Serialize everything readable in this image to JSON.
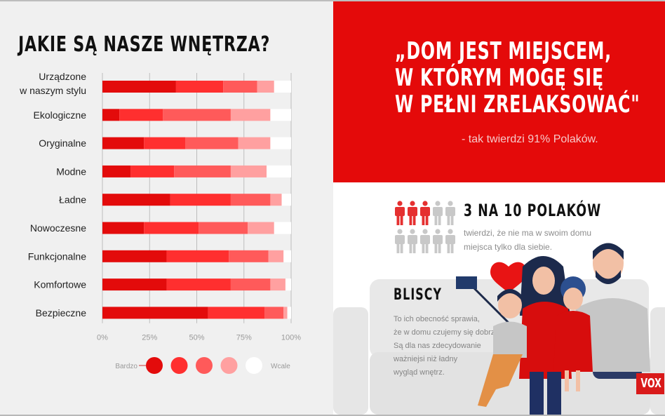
{
  "left": {
    "title": "JAKIE SĄ NASZE WNĘTRZA?"
  },
  "chart_data": {
    "type": "bar",
    "orientation": "horizontal",
    "stacked": true,
    "title": "JAKIE SĄ NASZE WNĘTRZA?",
    "xlabel": "",
    "ylabel": "",
    "xlim": [
      0,
      100
    ],
    "x_ticks": [
      "0%",
      "25%",
      "50%",
      "75%",
      "100%"
    ],
    "grid": true,
    "categories": [
      [
        "Urządzone",
        "w naszym stylu"
      ],
      [
        "Ekologiczne"
      ],
      [
        "Oryginalne"
      ],
      [
        "Modne"
      ],
      [
        "Ładne"
      ],
      [
        "Nowoczesne"
      ],
      [
        "Funkcjonalne"
      ],
      [
        "Komfortowe"
      ],
      [
        "Bezpieczne"
      ]
    ],
    "series": [
      {
        "name": "Bardzo",
        "color": "#e30b0b",
        "values": [
          39,
          9,
          22,
          15,
          36,
          22,
          34,
          34,
          56
        ]
      },
      {
        "name": "2",
        "color": "#ff2f2f",
        "values": [
          25,
          23,
          22,
          23,
          32,
          29,
          33,
          34,
          30
        ]
      },
      {
        "name": "3",
        "color": "#ff5a5a",
        "values": [
          18,
          36,
          28,
          30,
          21,
          26,
          21,
          21,
          10
        ]
      },
      {
        "name": "4",
        "color": "#ffa0a0",
        "values": [
          9,
          21,
          17,
          19,
          6,
          14,
          8,
          8,
          2
        ]
      },
      {
        "name": "Wcale",
        "color": "#ffffff",
        "values": [
          9,
          11,
          11,
          13,
          5,
          9,
          4,
          3,
          2
        ]
      }
    ],
    "legend": {
      "position": "bottom",
      "start_label": "Bardzo",
      "end_label": "Wcale"
    }
  },
  "right": {
    "quote_lines": [
      "„DOM JEST MIEJSCEM,",
      "W KTÓRYM MOGĘ SIĘ",
      "W PEŁNI ZRELAKSOWAĆ\""
    ],
    "quote_source": "- tak twierdzi 91% Polaków.",
    "stat": {
      "title": "3 NA 10 POLAKÓW",
      "highlighted": 3,
      "total": 10,
      "description": "twierdzi, że nie ma w swoim domu miejsca tylko dla siebie.",
      "highlight_color": "#e53030",
      "base_color": "#c8c8c8"
    },
    "bliscy": {
      "title": "BLISCY",
      "lines": [
        "To ich obecność sprawia,",
        "że w domu czujemy się dobrze.",
        "Są dla nas zdecydowanie",
        "ważniejsi niż ładny",
        "wygląd wnętrz."
      ]
    },
    "brand": "VOX"
  }
}
